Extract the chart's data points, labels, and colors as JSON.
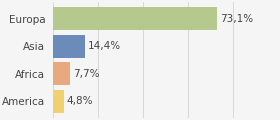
{
  "categories": [
    "Europa",
    "Asia",
    "Africa",
    "America"
  ],
  "values": [
    73.1,
    14.4,
    7.7,
    4.8
  ],
  "labels": [
    "73,1%",
    "14,4%",
    "7,7%",
    "4,8%"
  ],
  "bar_colors": [
    "#b5c98e",
    "#6b8cba",
    "#e8a97e",
    "#f0d070"
  ],
  "background_color": "#f5f5f5",
  "xlim": [
    0,
    100
  ],
  "label_fontsize": 7.5,
  "tick_fontsize": 7.5,
  "bar_height": 0.82
}
